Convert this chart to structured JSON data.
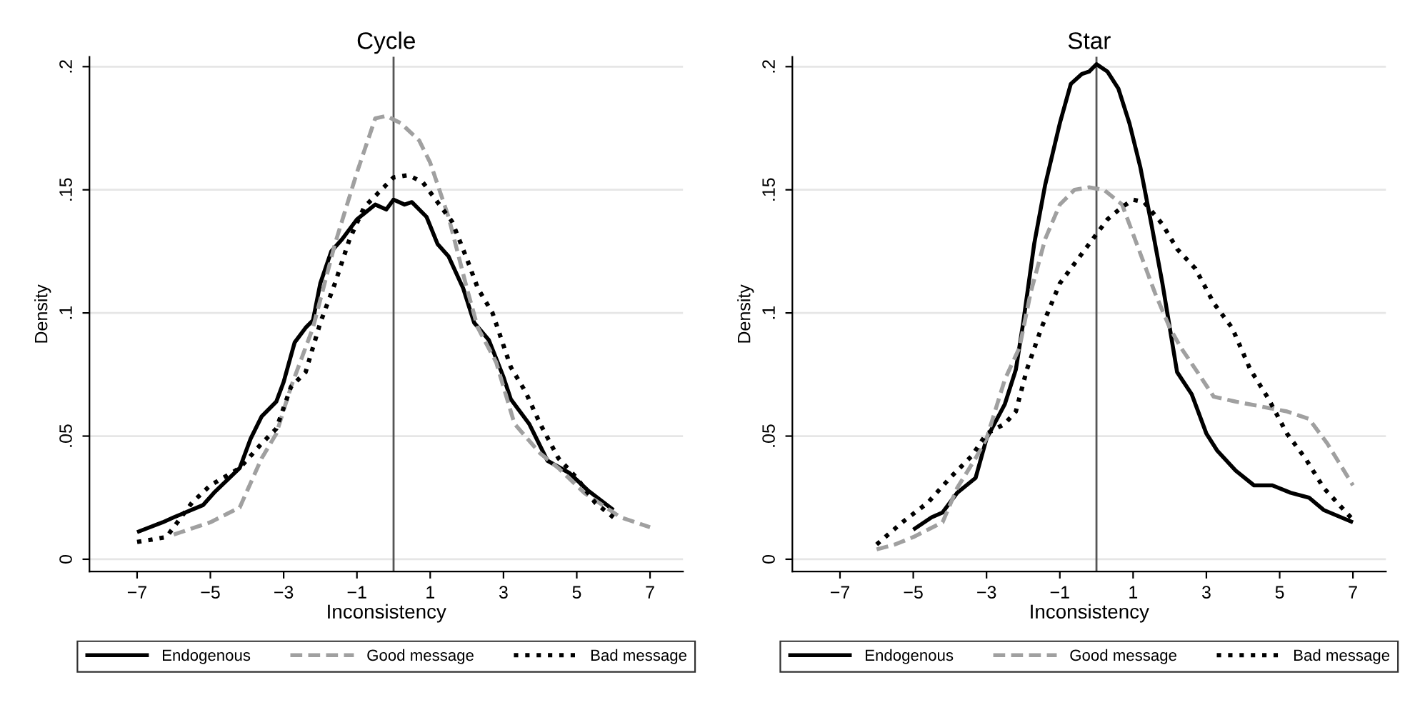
{
  "chart_data": [
    {
      "type": "line",
      "title": "Cycle",
      "xlabel": "Inconsistency",
      "ylabel": "Density",
      "xlim": [
        -8.3,
        7.9
      ],
      "ylim": [
        -0.005,
        0.204
      ],
      "xticks": [
        {
          "value": -7,
          "label": "−7"
        },
        {
          "value": -5,
          "label": "−5"
        },
        {
          "value": -3,
          "label": "−3"
        },
        {
          "value": -1,
          "label": "−1"
        },
        1,
        3,
        5,
        7
      ],
      "yticks": [
        0,
        {
          "value": 0.05,
          "label": ".05"
        },
        {
          "value": 0.1,
          "label": ".1"
        },
        {
          "value": 0.15,
          "label": ".15"
        },
        {
          "value": 0.2,
          "label": ".2"
        }
      ],
      "grid": "y",
      "legend": "bottom",
      "ref_lines": [
        {
          "axis": "x",
          "value": 0,
          "color": "#555555"
        }
      ],
      "series": [
        {
          "name": "Endogenous",
          "color": "#000000",
          "line_style": "solid",
          "x": [
            -7,
            -6.3,
            -6,
            -5.2,
            -4.9,
            -4.2,
            -3.9,
            -3.6,
            -3.2,
            -3,
            -2.7,
            -2.4,
            -2.2,
            -2,
            -1.7,
            -1.4,
            -1,
            -0.5,
            -0.2,
            0,
            0.3,
            0.5,
            0.9,
            1.2,
            1.5,
            1.9,
            2.2,
            2.6,
            3,
            3.2,
            3.7,
            4.2,
            4.8,
            5.3,
            6
          ],
          "values": [
            0.011,
            0.015,
            0.017,
            0.022,
            0.027,
            0.037,
            0.049,
            0.058,
            0.064,
            0.072,
            0.088,
            0.094,
            0.097,
            0.112,
            0.125,
            0.13,
            0.138,
            0.144,
            0.142,
            0.146,
            0.144,
            0.145,
            0.139,
            0.128,
            0.123,
            0.11,
            0.096,
            0.089,
            0.074,
            0.065,
            0.055,
            0.04,
            0.035,
            0.028,
            0.02
          ]
        },
        {
          "name": "Good message",
          "color": "#a0a0a0",
          "line_style": "dashed",
          "x": [
            -6,
            -5,
            -4.2,
            -3.6,
            -3.2,
            -2.8,
            -2.2,
            -1.6,
            -1,
            -0.5,
            -0.2,
            0.2,
            0.7,
            1,
            1.5,
            2,
            2.3,
            2.8,
            3.3,
            4,
            4.5,
            5.2,
            6.2,
            7
          ],
          "values": [
            0.01,
            0.015,
            0.021,
            0.041,
            0.051,
            0.07,
            0.094,
            0.128,
            0.157,
            0.179,
            0.18,
            0.177,
            0.17,
            0.161,
            0.139,
            0.11,
            0.094,
            0.08,
            0.055,
            0.043,
            0.037,
            0.027,
            0.017,
            0.013
          ]
        },
        {
          "name": "Bad message",
          "color": "#000000",
          "line_style": "dotted",
          "x": [
            -7,
            -6.2,
            -5.5,
            -5,
            -4.2,
            -3.6,
            -3.2,
            -2.8,
            -2.4,
            -2,
            -1.6,
            -1.2,
            -0.8,
            -0.4,
            0,
            0.4,
            0.8,
            1.2,
            1.6,
            2,
            2.3,
            2.7,
            3.2,
            3.6,
            4,
            4.5,
            5,
            5.5,
            6
          ],
          "values": [
            0.007,
            0.009,
            0.023,
            0.03,
            0.037,
            0.047,
            0.053,
            0.07,
            0.076,
            0.096,
            0.112,
            0.13,
            0.143,
            0.149,
            0.155,
            0.156,
            0.153,
            0.145,
            0.137,
            0.122,
            0.11,
            0.1,
            0.078,
            0.068,
            0.055,
            0.041,
            0.033,
            0.023,
            0.017
          ]
        }
      ]
    },
    {
      "type": "line",
      "title": "Star",
      "xlabel": "Inconsistency",
      "ylabel": "Density",
      "xlim": [
        -8.3,
        7.9
      ],
      "ylim": [
        -0.005,
        0.204
      ],
      "xticks": [
        {
          "value": -7,
          "label": "−7"
        },
        {
          "value": -5,
          "label": "−5"
        },
        {
          "value": -3,
          "label": "−3"
        },
        {
          "value": -1,
          "label": "−1"
        },
        1,
        3,
        5,
        7
      ],
      "yticks": [
        0,
        {
          "value": 0.05,
          "label": ".05"
        },
        {
          "value": 0.1,
          "label": ".1"
        },
        {
          "value": 0.15,
          "label": ".15"
        },
        {
          "value": 0.2,
          "label": ".2"
        }
      ],
      "grid": "y",
      "legend": "bottom",
      "ref_lines": [
        {
          "axis": "x",
          "value": 0,
          "color": "#555555"
        }
      ],
      "series": [
        {
          "name": "Endogenous",
          "color": "#000000",
          "line_style": "solid",
          "x": [
            -5,
            -4.5,
            -4.2,
            -3.8,
            -3.3,
            -3,
            -2.5,
            -2.2,
            -2,
            -1.7,
            -1.4,
            -1,
            -0.7,
            -0.4,
            -0.2,
            0,
            0.3,
            0.6,
            0.9,
            1.2,
            1.5,
            1.8,
            2,
            2.2,
            2.6,
            3,
            3.3,
            3.8,
            4.3,
            4.8,
            5.3,
            5.8,
            6.2,
            7
          ],
          "values": [
            0.012,
            0.017,
            0.019,
            0.027,
            0.033,
            0.049,
            0.063,
            0.077,
            0.096,
            0.128,
            0.152,
            0.177,
            0.193,
            0.197,
            0.198,
            0.201,
            0.198,
            0.191,
            0.177,
            0.159,
            0.136,
            0.112,
            0.094,
            0.076,
            0.067,
            0.051,
            0.044,
            0.036,
            0.03,
            0.03,
            0.027,
            0.025,
            0.02,
            0.015
          ]
        },
        {
          "name": "Good message",
          "color": "#a0a0a0",
          "line_style": "dashed",
          "x": [
            -6,
            -5.5,
            -5,
            -4.2,
            -3.8,
            -3.3,
            -3,
            -2.5,
            -2.1,
            -1.8,
            -1.4,
            -1,
            -0.6,
            -0.2,
            0.2,
            0.7,
            1.2,
            1.6,
            2,
            2.3,
            2.8,
            3.2,
            3.8,
            4.5,
            5.2,
            5.8,
            6.3,
            7
          ],
          "values": [
            0.004,
            0.006,
            0.009,
            0.015,
            0.029,
            0.041,
            0.049,
            0.073,
            0.086,
            0.108,
            0.13,
            0.144,
            0.15,
            0.151,
            0.15,
            0.144,
            0.124,
            0.108,
            0.094,
            0.086,
            0.075,
            0.066,
            0.064,
            0.062,
            0.06,
            0.057,
            0.047,
            0.03
          ]
        },
        {
          "name": "Bad message",
          "color": "#000000",
          "line_style": "dotted",
          "x": [
            -6,
            -5.3,
            -4.6,
            -4,
            -3.4,
            -3,
            -2.5,
            -2.2,
            -1.9,
            -1.5,
            -1,
            -0.6,
            -0.2,
            0,
            0.3,
            0.7,
            1,
            1.3,
            1.8,
            2.2,
            2.7,
            3.2,
            3.7,
            4.2,
            4.7,
            5.2,
            5.7,
            6.2,
            7
          ],
          "values": [
            0.006,
            0.015,
            0.023,
            0.033,
            0.042,
            0.051,
            0.055,
            0.06,
            0.077,
            0.094,
            0.112,
            0.12,
            0.128,
            0.132,
            0.138,
            0.143,
            0.146,
            0.145,
            0.136,
            0.126,
            0.118,
            0.104,
            0.094,
            0.077,
            0.065,
            0.051,
            0.041,
            0.029,
            0.016
          ]
        }
      ]
    }
  ]
}
